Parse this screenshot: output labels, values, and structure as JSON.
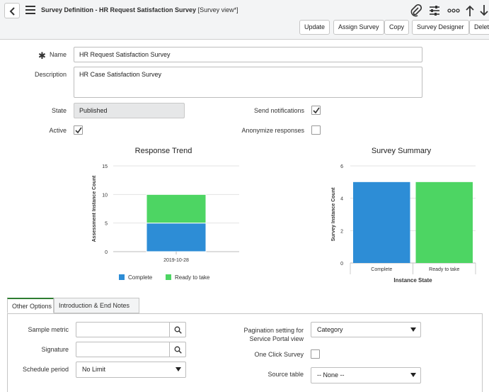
{
  "header": {
    "title_main": "Survey Definition - HR Request Satisfaction Survey",
    "title_suffix": "[Survey view*]",
    "buttons": {
      "update": "Update",
      "assign": "Assign Survey",
      "copy": "Copy",
      "designer": "Survey Designer",
      "delete": "Delete"
    },
    "icons": [
      "back-arrow",
      "hamburger-menu",
      "paperclip",
      "settings-sliders",
      "more-ellipsis",
      "arrow-up",
      "arrow-down"
    ]
  },
  "form": {
    "name_label": "Name",
    "name_value": "HR Request Satisfaction Survey",
    "description_label": "Description",
    "description_value": "HR Case Satisfaction Survey",
    "state_label": "State",
    "state_value": "Published",
    "active_label": "Active",
    "active_checked": true,
    "send_notifications_label": "Send notifications",
    "send_notifications_checked": true,
    "anonymize_label": "Anonymize responses",
    "anonymize_checked": false
  },
  "charts": {
    "trend_title": "Response Trend",
    "summary_title": "Survey Summary"
  },
  "chart_data": [
    {
      "type": "bar",
      "stacked": true,
      "title": "Response Trend",
      "categories": [
        "2019-10-28"
      ],
      "series": [
        {
          "name": "Complete",
          "values": [
            5
          ],
          "color": "#2d8dd6"
        },
        {
          "name": "Ready to take",
          "values": [
            5
          ],
          "color": "#4dd563"
        }
      ],
      "xlabel": "",
      "ylabel": "Assessment Instance Count",
      "ylim": [
        0,
        15
      ],
      "yticks": [
        0,
        5,
        10,
        15
      ],
      "grid": true,
      "legend": "bottom"
    },
    {
      "type": "bar",
      "title": "Survey Summary",
      "categories": [
        "Complete",
        "Ready to take"
      ],
      "values": [
        5,
        5
      ],
      "colors": [
        "#2d8dd6",
        "#4dd563"
      ],
      "xlabel": "Instance State",
      "ylabel": "Survey Instance Count",
      "ylim": [
        0,
        6
      ],
      "yticks": [
        0,
        2,
        4,
        6
      ],
      "grid": true
    }
  ],
  "tabs": [
    {
      "label": "Other Options",
      "active": true
    },
    {
      "label": "Introduction & End Notes",
      "active": false
    }
  ],
  "options": {
    "sample_metric_label": "Sample metric",
    "sample_metric_value": "",
    "signature_label": "Signature",
    "signature_value": "",
    "schedule_label": "Schedule period",
    "schedule_value": "No Limit",
    "pagination_label_1": "Pagination setting for",
    "pagination_label_2": "Service Portal view",
    "pagination_value": "Category",
    "one_click_label": "One Click Survey",
    "one_click_checked": false,
    "source_table_label": "Source table",
    "source_table_value": "-- None --"
  }
}
